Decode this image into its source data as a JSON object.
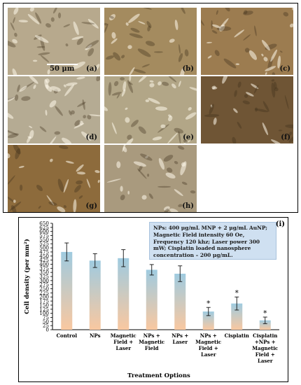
{
  "micrographs": {
    "tiles": [
      {
        "label": "(a)",
        "tone": "#b7a98d"
      },
      {
        "label": "(b)",
        "tone": "#a48b5f"
      },
      {
        "label": "(c)",
        "tone": "#9c7c50"
      },
      {
        "label": "(d)",
        "tone": "#b5ab93"
      },
      {
        "label": "(e)",
        "tone": "#b2a687"
      },
      {
        "label": "(f)",
        "tone": "#6f5535"
      },
      {
        "label": "(g)",
        "tone": "#8d6b3c"
      },
      {
        "label": "(h)",
        "tone": "#a99a7e"
      }
    ],
    "scale_bar_label": "50 μm"
  },
  "chart_data": {
    "type": "bar",
    "panel_label": "(i)",
    "categories": [
      [
        "Control"
      ],
      [
        "NPs"
      ],
      [
        "Magnetic",
        "Field +",
        "Laser"
      ],
      [
        "NPs +",
        "Magnetic",
        "Field"
      ],
      [
        "NPs +",
        "Laser"
      ],
      [
        "NPs +",
        "Magnetic",
        "Field +",
        "Laser"
      ],
      [
        "Cisplatin"
      ],
      [
        "Cisplatin",
        "+NPs +",
        "Magnetic",
        "Field +",
        "Laser"
      ]
    ],
    "values": [
      475,
      422,
      437,
      366,
      342,
      111,
      160,
      57
    ],
    "errors": [
      55,
      42,
      52,
      32,
      48,
      25,
      40,
      20
    ],
    "significant": [
      false,
      false,
      false,
      false,
      false,
      true,
      true,
      true
    ],
    "significance_marker": "*",
    "ylabel": "Cell density (per mm²)",
    "xlabel": "Treatment Options",
    "ylim": [
      0,
      650
    ],
    "yticks": [
      0,
      25,
      50,
      75,
      100,
      125,
      150,
      175,
      200,
      225,
      250,
      275,
      300,
      325,
      350,
      375,
      400,
      425,
      450,
      475,
      500,
      525,
      550,
      575,
      600,
      625,
      650
    ],
    "bar_gradient": {
      "top": "#9fcbe0",
      "bottom": "#f9c8a0"
    },
    "legend": "none"
  },
  "info_box": {
    "text": "NPs: 400 μg/mL MNP + 2 μg/mL AuNP; Magnetic Field intensity 60 Oe, Frequency 120 khz; Laser power 300 mW; Cisplatin loaded nanosphere concentration – 200 μg/mL."
  }
}
